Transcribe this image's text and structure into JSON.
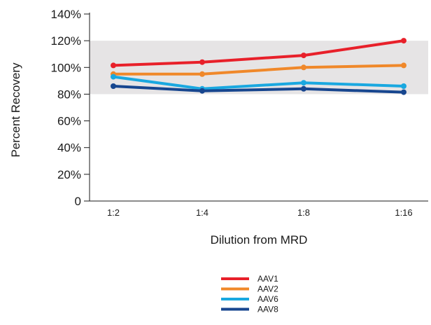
{
  "chart_data": {
    "type": "line",
    "xlabel": "Dilution from MRD",
    "ylabel": "Percent Recovery",
    "categories": [
      "1:2",
      "1:4",
      "1:8",
      "1:16"
    ],
    "ylim": [
      0,
      140
    ],
    "yticks": [
      "0",
      "20%",
      "40%",
      "60%",
      "80%",
      "100%",
      "120%",
      "140%"
    ],
    "acceptance_band": [
      80,
      120
    ],
    "band_color": "#e6e4e5",
    "legend_position": "bottom-center",
    "series": [
      {
        "name": "AAV1",
        "color": "#e8202a",
        "values": [
          101.5,
          104,
          109,
          120
        ]
      },
      {
        "name": "AAV2",
        "color": "#f0882a",
        "values": [
          95,
          95,
          100,
          101.5
        ]
      },
      {
        "name": "AAV6",
        "color": "#1aa8e0",
        "values": [
          93,
          84,
          88.5,
          86
        ]
      },
      {
        "name": "AAV8",
        "color": "#17468f",
        "values": [
          86,
          82.5,
          84,
          81.5
        ]
      }
    ]
  }
}
